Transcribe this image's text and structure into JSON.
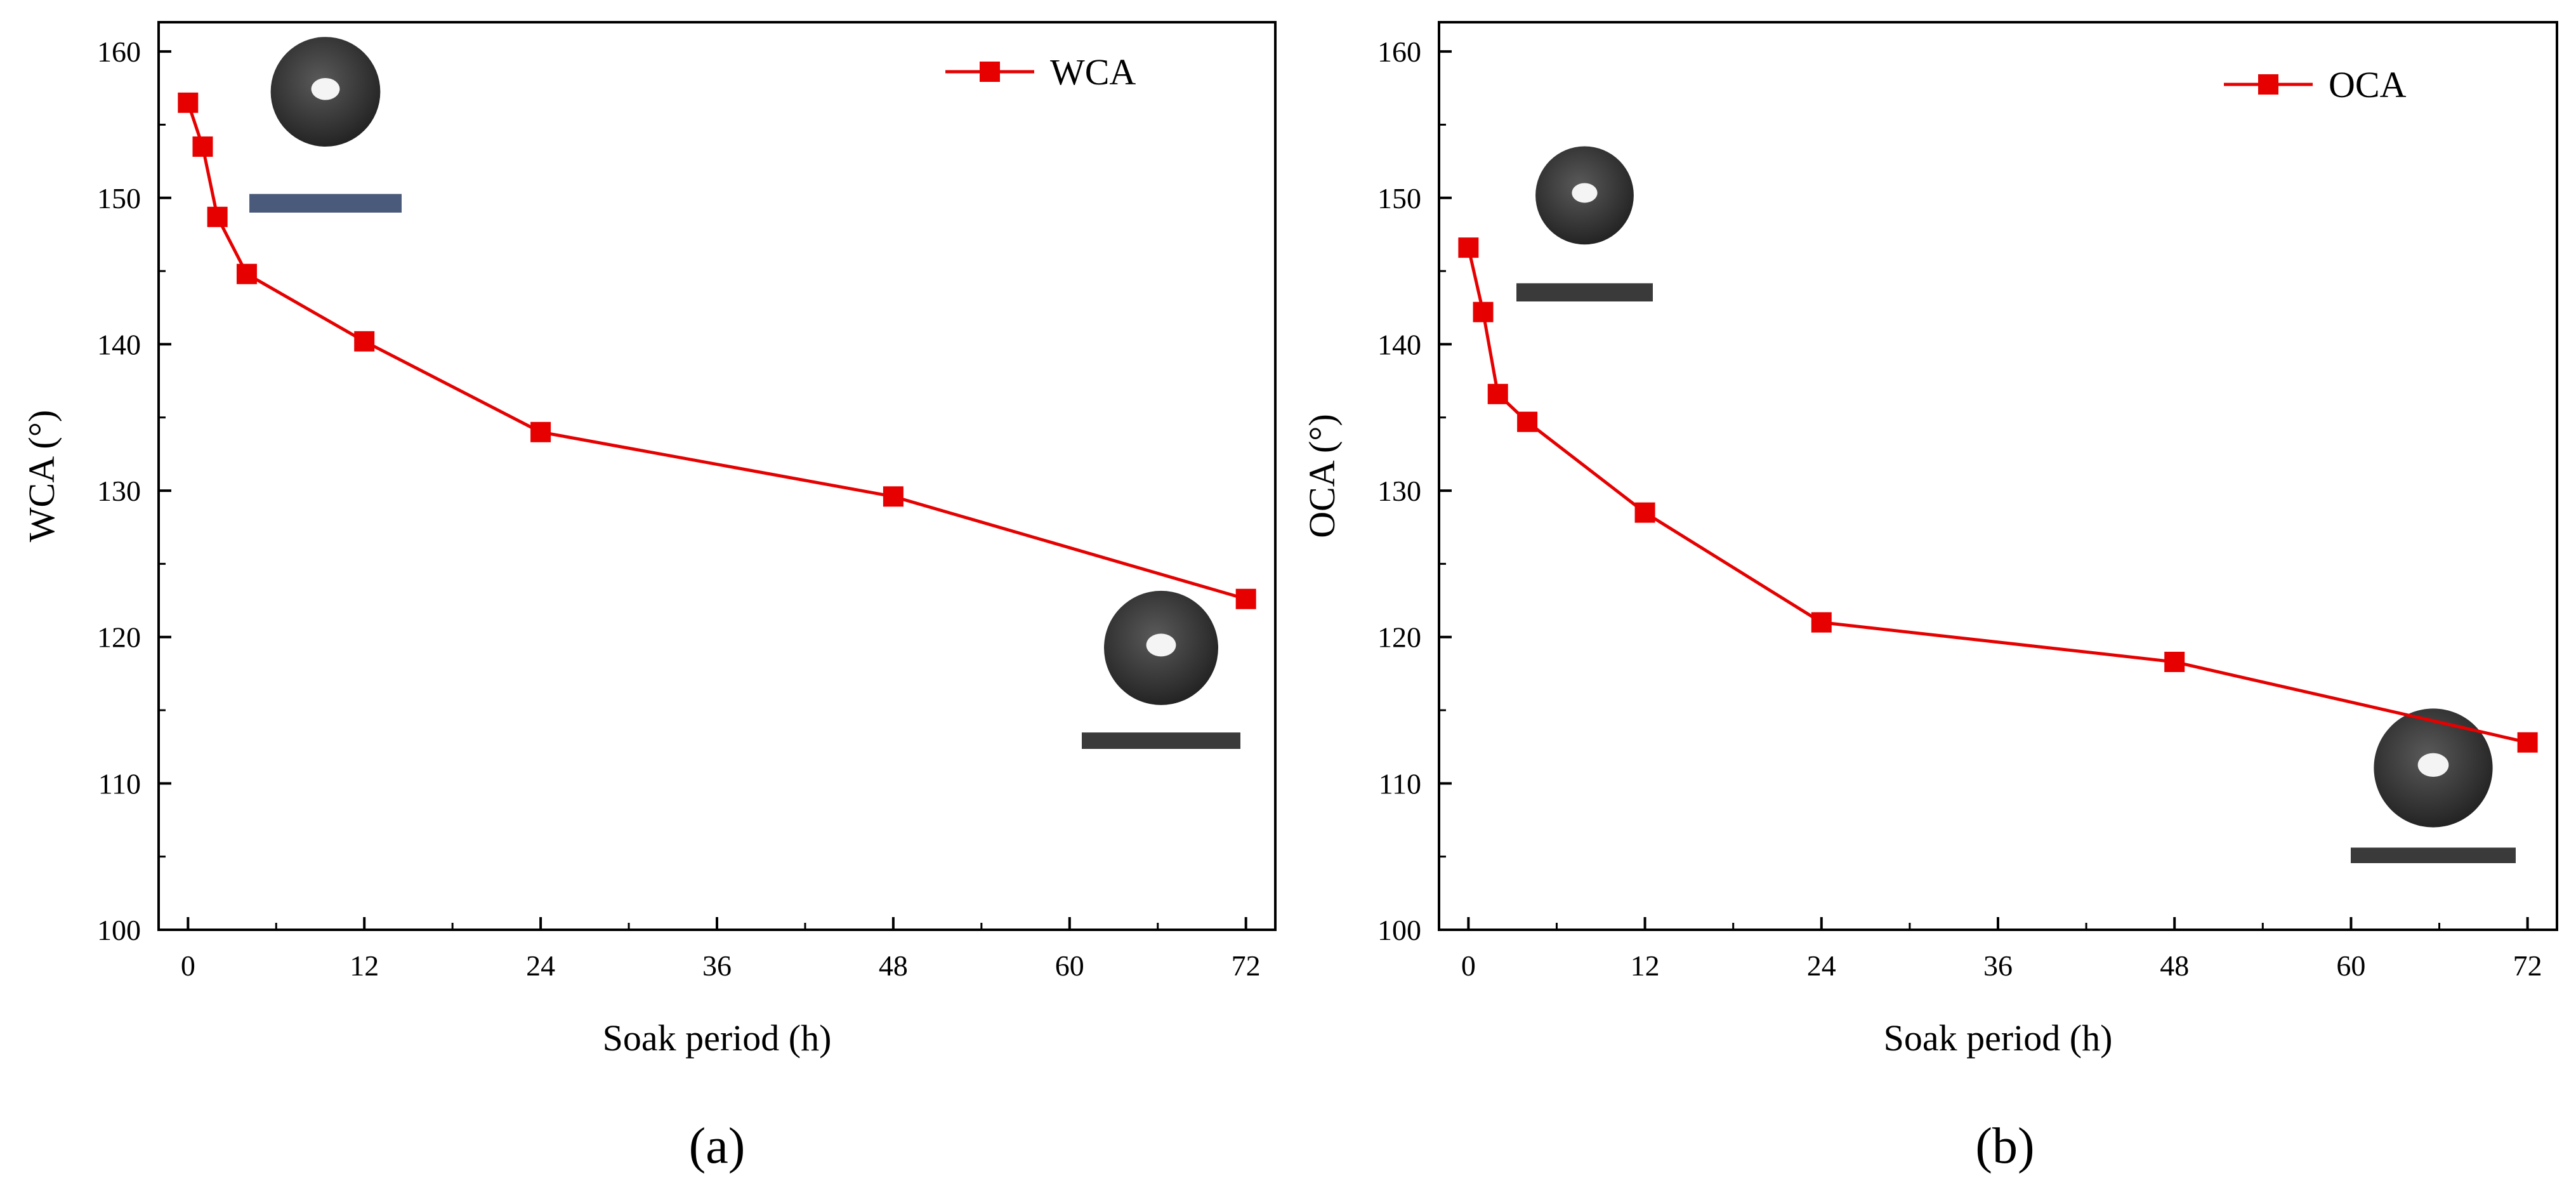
{
  "chart_data": [
    {
      "type": "line",
      "panel_label": "(a)",
      "xlabel": "Soak period (h)",
      "ylabel": "WCA (°)",
      "xlim": [
        -2,
        74
      ],
      "ylim": [
        100,
        162
      ],
      "xticks": [
        0,
        12,
        24,
        36,
        48,
        60,
        72
      ],
      "yticks": [
        100,
        110,
        120,
        130,
        140,
        150,
        160
      ],
      "xtick_labels": [
        "0",
        "12",
        "24",
        "36",
        "48",
        "60",
        "72"
      ],
      "ytick_labels": [
        "100",
        "110",
        "120",
        "130",
        "140",
        "150",
        "160"
      ],
      "legend_position": "top-right",
      "series": [
        {
          "name": "WCA",
          "color": "#e60000",
          "marker": "square",
          "x": [
            0,
            1,
            2,
            4,
            12,
            24,
            48,
            72
          ],
          "y": [
            156.5,
            153.5,
            148.7,
            144.8,
            140.2,
            134.0,
            129.6,
            122.6
          ]
        }
      ]
    },
    {
      "type": "line",
      "panel_label": "(b)",
      "xlabel": "Soak period (h)",
      "ylabel": "OCA (°)",
      "xlim": [
        -2,
        74
      ],
      "ylim": [
        100,
        162
      ],
      "xticks": [
        0,
        12,
        24,
        36,
        48,
        60,
        72
      ],
      "yticks": [
        100,
        110,
        120,
        130,
        140,
        150,
        160
      ],
      "xtick_labels": [
        "0",
        "12",
        "24",
        "36",
        "48",
        "60",
        "72"
      ],
      "ytick_labels": [
        "100",
        "110",
        "120",
        "130",
        "140",
        "150",
        "160"
      ],
      "legend_position": "top-right",
      "series": [
        {
          "name": "OCA",
          "color": "#e60000",
          "marker": "square",
          "x": [
            0,
            1,
            2,
            4,
            12,
            24,
            48,
            72
          ],
          "y": [
            146.6,
            142.2,
            136.6,
            134.7,
            128.5,
            121.0,
            118.3,
            112.8
          ]
        }
      ]
    }
  ]
}
